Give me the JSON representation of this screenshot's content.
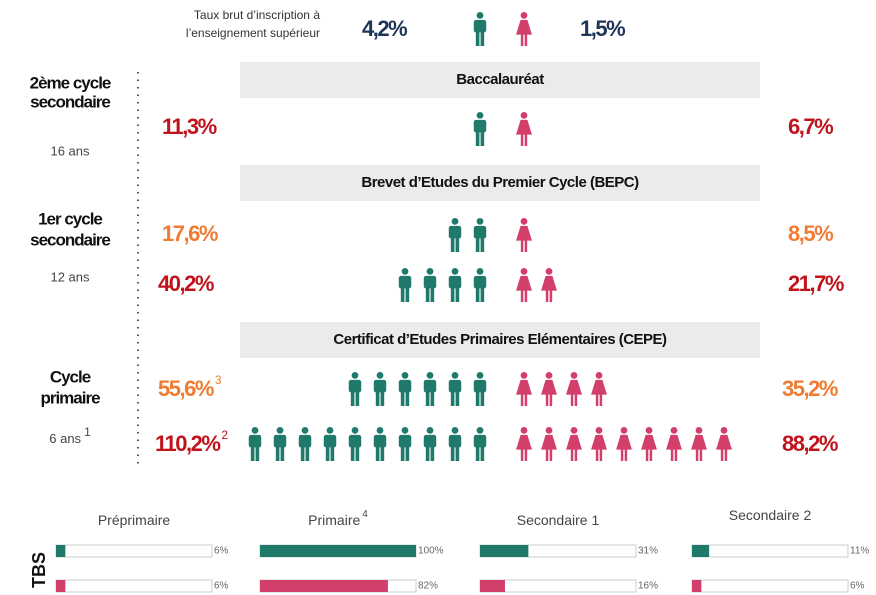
{
  "header": {
    "lines": [
      "Taux brut d’inscription à",
      "l’enseignement supérieur"
    ],
    "male": "4,2%",
    "female": "1,5%"
  },
  "stages": [
    {
      "lines": [
        "2ème cycle",
        "secondaire"
      ],
      "age": "16 ans"
    },
    {
      "lines": [
        "1er cycle",
        "secondaire"
      ],
      "age": "12 ans"
    },
    {
      "lines": [
        "Cycle",
        "primaire"
      ],
      "age": "6 ans",
      "note": "1"
    }
  ],
  "exams": [
    "Baccalauréat",
    "Brevet d’Etudes du Premier Cycle (BEPC)",
    "Certificat d’Etudes Primaires Elémentaires (CEPE)"
  ],
  "rows": [
    {
      "male": "11,3%",
      "female": "6,7%"
    },
    {
      "male": "17,6%",
      "female": "8,5%"
    },
    {
      "male": "40,2%",
      "female": "21,7%"
    },
    {
      "male": "55,6%",
      "note": "3",
      "female": "35,2%"
    },
    {
      "male": "110,2%",
      "note": "2",
      "female": "88,2%"
    }
  ],
  "tbs": {
    "label": "TBS",
    "xlim": [
      0,
      100
    ],
    "groups": [
      {
        "name": "Préprimaire",
        "male": {
          "value": 6,
          "label": "6%"
        },
        "female": {
          "value": 6,
          "label": "6%"
        }
      },
      {
        "name": "Primaire",
        "note": "4",
        "male": {
          "value": 100,
          "label": "100%"
        },
        "female": {
          "value": 82,
          "label": "82%"
        }
      },
      {
        "name": "Secondaire 1",
        "male": {
          "value": 31,
          "label": "31%"
        },
        "female": {
          "value": 16,
          "label": "16%"
        }
      },
      {
        "name": "Secondaire 2",
        "male": {
          "value": 11,
          "label": "11%"
        },
        "female": {
          "value": 6,
          "label": "6%"
        }
      }
    ]
  }
}
